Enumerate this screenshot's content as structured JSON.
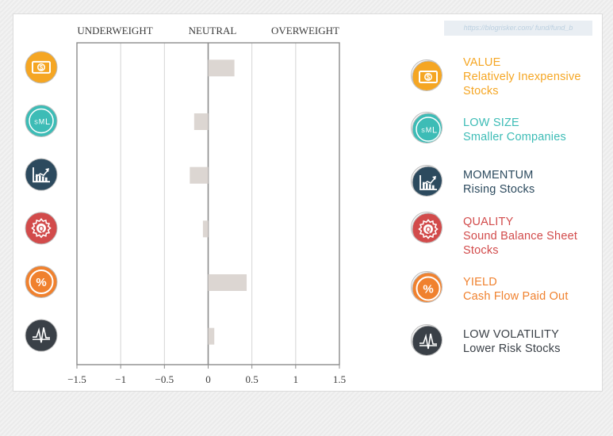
{
  "colors": {
    "bar": "#dcd6d2",
    "axis": "#8c8c8c",
    "grid": "#d4d4d4",
    "value": "#f5a623",
    "low_size": "#3dbcb6",
    "momentum": "#2c4a5e",
    "quality": "#d24b4b",
    "yield": "#f0812e",
    "low_volatility": "#3a4047"
  },
  "watermark_url": "https://blogrisker.com/ fund/fund_b",
  "chart_data": {
    "type": "bar",
    "orientation": "horizontal",
    "headers": [
      "UNDERWEIGHT",
      "NEUTRAL",
      "OVERWEIGHT"
    ],
    "categories": [
      "Value",
      "Low Size",
      "Momentum",
      "Quality",
      "Yield",
      "Low Volatility"
    ],
    "values": [
      0.3,
      -0.16,
      -0.21,
      -0.06,
      0.44,
      0.07
    ],
    "xlim": [
      -1.5,
      1.5
    ],
    "xticks": [
      -1.5,
      -1,
      -0.5,
      0,
      0.5,
      1,
      1.5
    ],
    "xtick_labels": [
      "−1.5",
      "−1",
      "−0.5",
      "0",
      "0.5",
      "1",
      "1.5"
    ],
    "grid": true,
    "icons": [
      "dollar-bill-icon",
      "sml-icon",
      "rising-chart-icon",
      "quality-seal-icon",
      "percent-icon",
      "volatility-icon"
    ]
  },
  "legend": [
    {
      "title": "VALUE",
      "desc": "Relatively Inexpensive Stocks",
      "desc_lines": [
        "Relatively Inexpensive",
        "Stocks"
      ],
      "icon": "dollar-bill-icon",
      "color_key": "value"
    },
    {
      "title": "LOW SIZE",
      "desc": "Smaller Companies",
      "desc_lines": [
        "Smaller Companies"
      ],
      "icon": "sml-icon",
      "color_key": "low_size"
    },
    {
      "title": "MOMENTUM",
      "desc": "Rising Stocks",
      "desc_lines": [
        "Rising Stocks"
      ],
      "icon": "rising-chart-icon",
      "color_key": "momentum"
    },
    {
      "title": "QUALITY",
      "desc": "Sound Balance Sheet Stocks",
      "desc_lines": [
        "Sound Balance Sheet",
        "Stocks"
      ],
      "icon": "quality-seal-icon",
      "color_key": "quality"
    },
    {
      "title": "YIELD",
      "desc": "Cash Flow Paid Out",
      "desc_lines": [
        "Cash Flow Paid Out"
      ],
      "icon": "percent-icon",
      "color_key": "yield"
    },
    {
      "title": "LOW VOLATILITY",
      "desc": "Lower Risk Stocks",
      "desc_lines": [
        "Lower Risk Stocks"
      ],
      "icon": "volatility-icon",
      "color_key": "low_volatility"
    }
  ]
}
